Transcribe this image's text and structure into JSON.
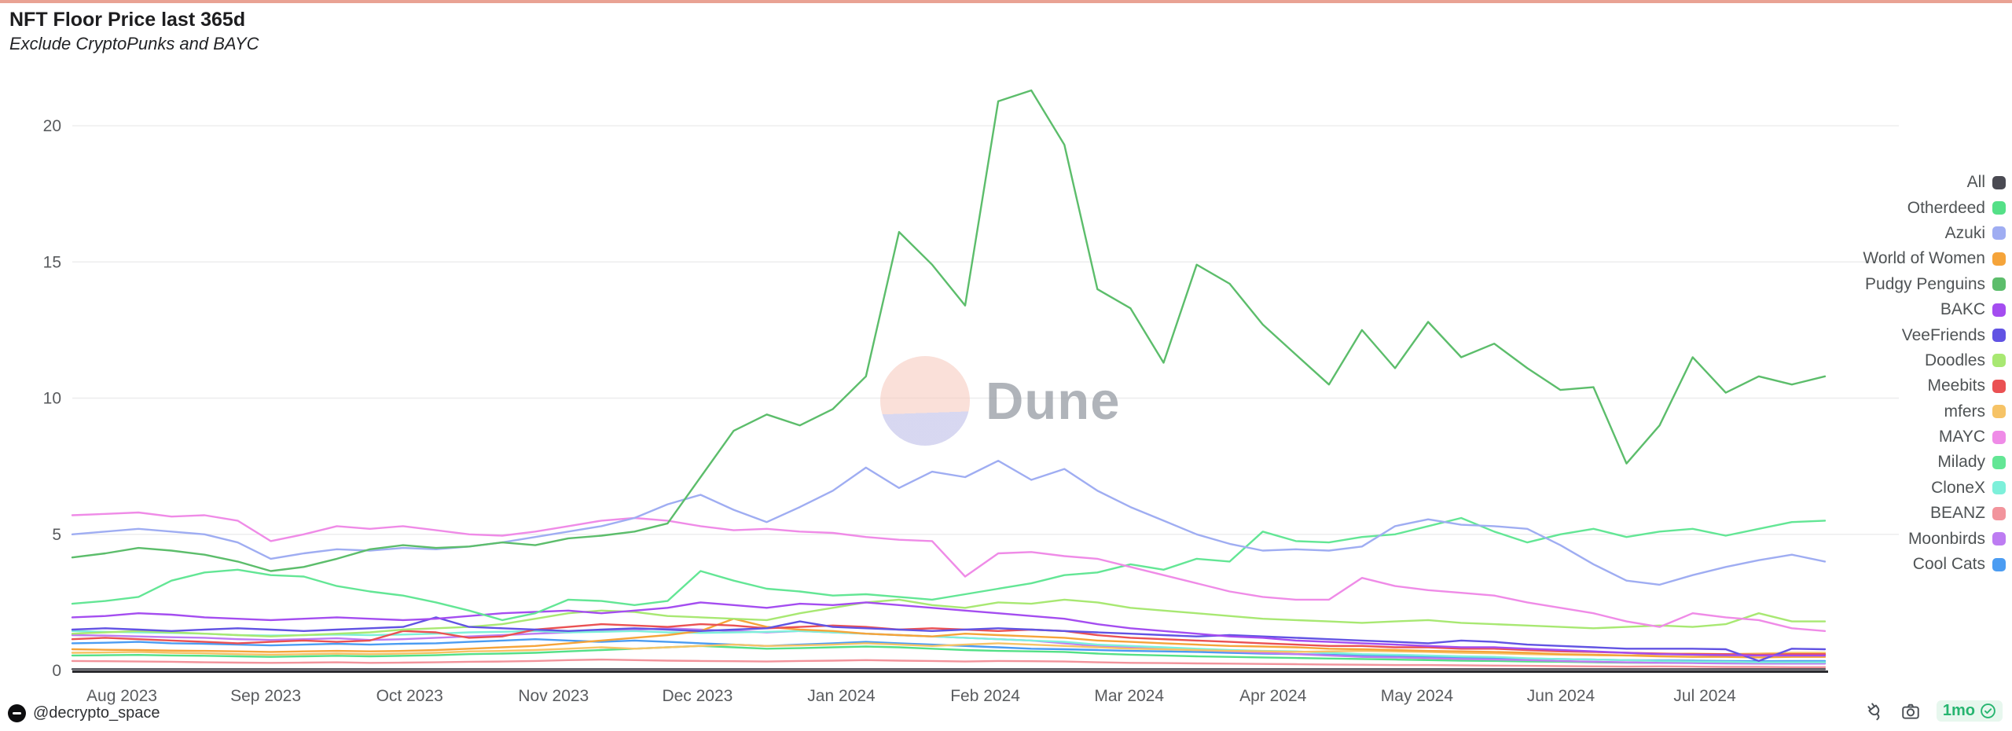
{
  "header": {
    "title": "NFT Floor Price last 365d",
    "subtitle": "Exclude CryptoPunks and BAYC"
  },
  "watermark": {
    "text": "Dune"
  },
  "footer": {
    "handle": "@decrypto_space",
    "refresh_badge": "1mo",
    "icons": [
      "plug-icon",
      "camera-icon",
      "verified-check-icon"
    ],
    "badge_color": "#26b570",
    "badge_bg": "#e7f7ee"
  },
  "chart_data": {
    "type": "line",
    "title": "NFT Floor Price last 365d",
    "subtitle": "Exclude CryptoPunks and BAYC",
    "x_note": "54 approx-weekly samples spanning Aug 2023 through Jul 2024",
    "x_tick_labels": [
      "Aug 2023",
      "Sep 2023",
      "Oct 2023",
      "Nov 2023",
      "Dec 2023",
      "Jan 2024",
      "Feb 2024",
      "Mar 2024",
      "Apr 2024",
      "May 2024",
      "Jun 2024",
      "Jul 2024"
    ],
    "y_ticks": [
      0,
      5,
      10,
      15,
      20
    ],
    "ylim": [
      0,
      21.5
    ],
    "ylabel": "",
    "xlabel": "",
    "grid": "horizontal",
    "legend_position": "right",
    "legend": [
      {
        "label": "All",
        "color": "#4a4a52"
      },
      {
        "label": "Otherdeed",
        "color": "#54e087"
      },
      {
        "label": "Azuki",
        "color": "#9fadf2"
      },
      {
        "label": "World of Women",
        "color": "#f5a43a"
      },
      {
        "label": "Pudgy Penguins",
        "color": "#5cbd6b"
      },
      {
        "label": "BAKC",
        "color": "#a44df0"
      },
      {
        "label": "VeeFriends",
        "color": "#6153e3"
      },
      {
        "label": "Doodles",
        "color": "#a8e872"
      },
      {
        "label": "Meebits",
        "color": "#ea5153"
      },
      {
        "label": "mfers",
        "color": "#f6c366"
      },
      {
        "label": "MAYC",
        "color": "#ef8be7"
      },
      {
        "label": "Milady",
        "color": "#63e695"
      },
      {
        "label": "CloneX",
        "color": "#7df0da"
      },
      {
        "label": "BEANZ",
        "color": "#f2949c"
      },
      {
        "label": "Moonbirds",
        "color": "#bd7cf2"
      },
      {
        "label": "Cool Cats",
        "color": "#4b9cf2"
      }
    ],
    "series": [
      {
        "name": "Otherdeed",
        "color": "#54e087",
        "values": [
          0.55,
          0.56,
          0.57,
          0.55,
          0.54,
          0.52,
          0.5,
          0.52,
          0.54,
          0.52,
          0.54,
          0.56,
          0.6,
          0.62,
          0.65,
          0.7,
          0.75,
          0.8,
          0.85,
          0.9,
          0.85,
          0.8,
          0.82,
          0.85,
          0.88,
          0.85,
          0.8,
          0.75,
          0.72,
          0.7,
          0.68,
          0.62,
          0.58,
          0.55,
          0.52,
          0.5,
          0.48,
          0.46,
          0.44,
          0.42,
          0.4,
          0.38,
          0.36,
          0.35,
          0.33,
          0.32,
          0.3,
          0.29,
          0.28,
          0.28,
          0.27,
          0.27,
          0.28,
          0.28
        ]
      },
      {
        "name": "Cool Cats",
        "color": "#4b9cf2",
        "values": [
          1.0,
          1.02,
          1.05,
          1.0,
          0.98,
          0.95,
          0.92,
          0.95,
          0.98,
          0.95,
          0.98,
          1.0,
          1.05,
          1.1,
          1.15,
          1.1,
          1.05,
          1.1,
          1.05,
          1.0,
          0.95,
          0.9,
          0.95,
          1.0,
          1.05,
          1.0,
          0.95,
          0.9,
          0.85,
          0.8,
          0.78,
          0.75,
          0.72,
          0.7,
          0.68,
          0.65,
          0.62,
          0.6,
          0.58,
          0.55,
          0.52,
          0.5,
          0.48,
          0.45,
          0.44,
          0.42,
          0.4,
          0.38,
          0.37,
          0.36,
          0.35,
          0.34,
          0.35,
          0.35
        ]
      },
      {
        "name": "Moonbirds",
        "color": "#bd7cf2",
        "values": [
          1.3,
          1.28,
          1.25,
          1.22,
          1.2,
          1.15,
          1.12,
          1.15,
          1.18,
          1.12,
          1.15,
          1.2,
          1.25,
          1.3,
          1.35,
          1.4,
          1.45,
          1.5,
          1.55,
          1.5,
          1.45,
          1.4,
          1.45,
          1.4,
          1.35,
          1.3,
          1.25,
          1.2,
          1.15,
          1.1,
          1.0,
          0.9,
          0.85,
          0.8,
          0.75,
          0.7,
          0.65,
          0.6,
          0.55,
          0.5,
          0.48,
          0.45,
          0.42,
          0.4,
          0.38,
          0.35,
          0.32,
          0.3,
          0.28,
          0.27,
          0.26,
          0.25,
          0.25,
          0.25
        ]
      },
      {
        "name": "BEANZ",
        "color": "#f2949c",
        "values": [
          0.35,
          0.34,
          0.33,
          0.32,
          0.3,
          0.29,
          0.28,
          0.29,
          0.3,
          0.28,
          0.29,
          0.3,
          0.32,
          0.33,
          0.35,
          0.38,
          0.4,
          0.38,
          0.36,
          0.35,
          0.34,
          0.33,
          0.35,
          0.36,
          0.38,
          0.36,
          0.35,
          0.33,
          0.35,
          0.34,
          0.33,
          0.3,
          0.28,
          0.27,
          0.26,
          0.25,
          0.24,
          0.23,
          0.22,
          0.21,
          0.2,
          0.2,
          0.19,
          0.18,
          0.17,
          0.16,
          0.15,
          0.14,
          0.15,
          0.14,
          0.13,
          0.13,
          0.12,
          0.12
        ]
      },
      {
        "name": "CloneX",
        "color": "#7df0da",
        "values": [
          1.45,
          1.42,
          1.4,
          1.38,
          1.35,
          1.3,
          1.28,
          1.3,
          1.32,
          1.3,
          1.32,
          1.35,
          1.4,
          1.42,
          1.45,
          1.4,
          1.42,
          1.45,
          1.4,
          1.38,
          1.4,
          1.42,
          1.45,
          1.4,
          1.35,
          1.3,
          1.25,
          1.2,
          1.15,
          1.1,
          1.05,
          0.95,
          0.9,
          0.85,
          0.8,
          0.75,
          0.72,
          0.7,
          0.65,
          0.6,
          0.58,
          0.55,
          0.52,
          0.5,
          0.45,
          0.42,
          0.4,
          0.38,
          0.35,
          0.33,
          0.32,
          0.3,
          0.3,
          0.3
        ]
      },
      {
        "name": "mfers",
        "color": "#f6c366",
        "values": [
          0.65,
          0.66,
          0.68,
          0.65,
          0.63,
          0.6,
          0.58,
          0.6,
          0.62,
          0.6,
          0.62,
          0.65,
          0.7,
          0.72,
          0.75,
          0.8,
          0.85,
          0.8,
          0.85,
          0.9,
          0.95,
          0.9,
          0.92,
          0.95,
          1.0,
          0.95,
          0.9,
          0.95,
          1.0,
          0.95,
          0.9,
          0.85,
          0.8,
          0.78,
          0.75,
          0.72,
          0.7,
          0.68,
          0.7,
          0.72,
          0.7,
          0.68,
          0.65,
          0.63,
          0.6,
          0.58,
          0.56,
          0.55,
          0.6,
          0.62,
          0.6,
          0.62,
          0.65,
          0.65
        ]
      },
      {
        "name": "World of Women",
        "color": "#f5a43a",
        "values": [
          0.78,
          0.76,
          0.75,
          0.73,
          0.72,
          0.7,
          0.68,
          0.7,
          0.72,
          0.7,
          0.72,
          0.75,
          0.8,
          0.85,
          0.9,
          1.0,
          1.1,
          1.2,
          1.3,
          1.45,
          1.9,
          1.6,
          1.5,
          1.45,
          1.35,
          1.3,
          1.25,
          1.35,
          1.3,
          1.25,
          1.2,
          1.1,
          1.05,
          1.0,
          0.95,
          0.9,
          0.88,
          0.85,
          0.8,
          0.78,
          0.75,
          0.72,
          0.7,
          0.68,
          0.65,
          0.6,
          0.58,
          0.55,
          0.52,
          0.5,
          0.5,
          0.48,
          0.5,
          0.5
        ]
      },
      {
        "name": "Meebits",
        "color": "#ea5153",
        "values": [
          1.15,
          1.2,
          1.15,
          1.1,
          1.05,
          1.0,
          1.05,
          1.1,
          1.05,
          1.1,
          1.45,
          1.4,
          1.2,
          1.25,
          1.5,
          1.6,
          1.7,
          1.65,
          1.6,
          1.7,
          1.65,
          1.55,
          1.6,
          1.65,
          1.6,
          1.5,
          1.55,
          1.5,
          1.45,
          1.5,
          1.45,
          1.3,
          1.2,
          1.15,
          1.1,
          1.05,
          1.0,
          0.95,
          0.9,
          0.9,
          0.85,
          0.85,
          0.8,
          0.8,
          0.75,
          0.7,
          0.68,
          0.65,
          0.62,
          0.6,
          0.6,
          0.58,
          0.6,
          0.6
        ]
      },
      {
        "name": "Doodles",
        "color": "#a8e872",
        "values": [
          1.35,
          1.4,
          1.45,
          1.4,
          1.35,
          1.3,
          1.25,
          1.3,
          1.35,
          1.4,
          1.5,
          1.55,
          1.6,
          1.7,
          1.9,
          2.1,
          2.2,
          2.15,
          2.0,
          1.95,
          1.9,
          1.85,
          2.1,
          2.3,
          2.5,
          2.6,
          2.4,
          2.3,
          2.5,
          2.45,
          2.6,
          2.5,
          2.3,
          2.2,
          2.1,
          2.0,
          1.9,
          1.85,
          1.8,
          1.75,
          1.8,
          1.85,
          1.75,
          1.7,
          1.65,
          1.6,
          1.55,
          1.6,
          1.65,
          1.6,
          1.7,
          2.1,
          1.8,
          1.8
        ]
      },
      {
        "name": "VeeFriends",
        "color": "#6153e3",
        "values": [
          1.5,
          1.55,
          1.5,
          1.45,
          1.5,
          1.55,
          1.5,
          1.45,
          1.5,
          1.55,
          1.6,
          1.95,
          1.6,
          1.55,
          1.5,
          1.45,
          1.5,
          1.55,
          1.5,
          1.45,
          1.5,
          1.55,
          1.8,
          1.6,
          1.55,
          1.5,
          1.45,
          1.5,
          1.55,
          1.5,
          1.45,
          1.4,
          1.35,
          1.3,
          1.25,
          1.3,
          1.25,
          1.2,
          1.15,
          1.1,
          1.05,
          1.0,
          1.1,
          1.05,
          0.95,
          0.9,
          0.85,
          0.8,
          0.8,
          0.8,
          0.78,
          0.35,
          0.8,
          0.78
        ]
      },
      {
        "name": "BAKC",
        "color": "#a44df0",
        "values": [
          1.95,
          2.0,
          2.1,
          2.05,
          1.95,
          1.9,
          1.85,
          1.9,
          1.95,
          1.9,
          1.85,
          1.9,
          2.0,
          2.1,
          2.15,
          2.2,
          2.1,
          2.2,
          2.3,
          2.5,
          2.4,
          2.3,
          2.45,
          2.4,
          2.5,
          2.4,
          2.3,
          2.2,
          2.1,
          2.0,
          1.9,
          1.7,
          1.55,
          1.45,
          1.35,
          1.25,
          1.2,
          1.1,
          1.05,
          1.0,
          0.95,
          0.9,
          0.85,
          0.85,
          0.8,
          0.75,
          0.7,
          0.65,
          0.6,
          0.58,
          0.56,
          0.55,
          0.55,
          0.55
        ]
      },
      {
        "name": "Milady",
        "color": "#63e695",
        "values": [
          2.45,
          2.55,
          2.7,
          3.3,
          3.6,
          3.7,
          3.5,
          3.45,
          3.1,
          2.9,
          2.75,
          2.5,
          2.2,
          1.85,
          2.1,
          2.6,
          2.55,
          2.4,
          2.55,
          3.65,
          3.3,
          3.0,
          2.9,
          2.75,
          2.8,
          2.7,
          2.6,
          2.8,
          3.0,
          3.2,
          3.5,
          3.6,
          3.9,
          3.7,
          4.1,
          4.0,
          5.1,
          4.75,
          4.7,
          4.9,
          5.0,
          5.3,
          5.6,
          5.1,
          4.7,
          5.0,
          5.2,
          4.9,
          5.1,
          5.2,
          4.95,
          5.2,
          5.45,
          5.5
        ]
      },
      {
        "name": "MAYC",
        "color": "#ef8be7",
        "values": [
          5.7,
          5.75,
          5.8,
          5.65,
          5.7,
          5.5,
          4.75,
          5.0,
          5.3,
          5.2,
          5.3,
          5.15,
          5.0,
          4.95,
          5.1,
          5.3,
          5.5,
          5.6,
          5.5,
          5.3,
          5.15,
          5.2,
          5.1,
          5.05,
          4.9,
          4.8,
          4.75,
          3.45,
          4.3,
          4.35,
          4.2,
          4.1,
          3.8,
          3.5,
          3.2,
          2.9,
          2.7,
          2.6,
          2.6,
          3.4,
          3.1,
          2.95,
          2.85,
          2.75,
          2.5,
          2.3,
          2.1,
          1.8,
          1.6,
          2.1,
          1.95,
          1.85,
          1.55,
          1.45
        ]
      },
      {
        "name": "Azuki",
        "color": "#9fadf2",
        "values": [
          5.0,
          5.1,
          5.2,
          5.1,
          5.0,
          4.7,
          4.1,
          4.3,
          4.45,
          4.4,
          4.5,
          4.45,
          4.55,
          4.7,
          4.9,
          5.1,
          5.3,
          5.6,
          6.1,
          6.45,
          5.9,
          5.45,
          6.0,
          6.6,
          7.45,
          6.7,
          7.3,
          7.1,
          7.7,
          7.0,
          7.4,
          6.6,
          6.0,
          5.5,
          5.0,
          4.65,
          4.4,
          4.45,
          4.4,
          4.55,
          5.3,
          5.55,
          5.35,
          5.3,
          5.2,
          4.6,
          3.9,
          3.3,
          3.15,
          3.5,
          3.8,
          4.05,
          4.25,
          4.0
        ]
      },
      {
        "name": "Pudgy Penguins",
        "color": "#5cbd6b",
        "values": [
          4.15,
          4.3,
          4.5,
          4.4,
          4.25,
          4.0,
          3.65,
          3.8,
          4.1,
          4.45,
          4.6,
          4.5,
          4.55,
          4.7,
          4.6,
          4.85,
          4.95,
          5.1,
          5.4,
          7.1,
          8.8,
          9.4,
          9.0,
          9.6,
          10.8,
          16.1,
          14.9,
          13.4,
          20.9,
          21.3,
          19.3,
          14.0,
          13.3,
          11.3,
          14.9,
          14.2,
          12.7,
          11.6,
          10.5,
          12.5,
          11.1,
          12.8,
          11.5,
          12.0,
          11.1,
          10.3,
          10.4,
          7.6,
          9.0,
          11.5,
          10.2,
          10.8,
          10.5,
          10.8
        ]
      },
      {
        "name": "All",
        "color": "#4a4a52",
        "values": [
          0.05,
          0.05,
          0.05,
          0.05,
          0.05,
          0.05,
          0.05,
          0.05,
          0.05,
          0.05,
          0.05,
          0.05,
          0.05,
          0.05,
          0.05,
          0.05,
          0.05,
          0.05,
          0.05,
          0.05,
          0.05,
          0.05,
          0.05,
          0.05,
          0.05,
          0.05,
          0.05,
          0.05,
          0.05,
          0.05,
          0.05,
          0.05,
          0.05,
          0.05,
          0.05,
          0.05,
          0.05,
          0.05,
          0.05,
          0.05,
          0.05,
          0.05,
          0.05,
          0.05,
          0.05,
          0.05,
          0.05,
          0.05,
          0.05,
          0.05,
          0.05,
          0.05,
          0.05,
          0.05
        ]
      }
    ]
  }
}
